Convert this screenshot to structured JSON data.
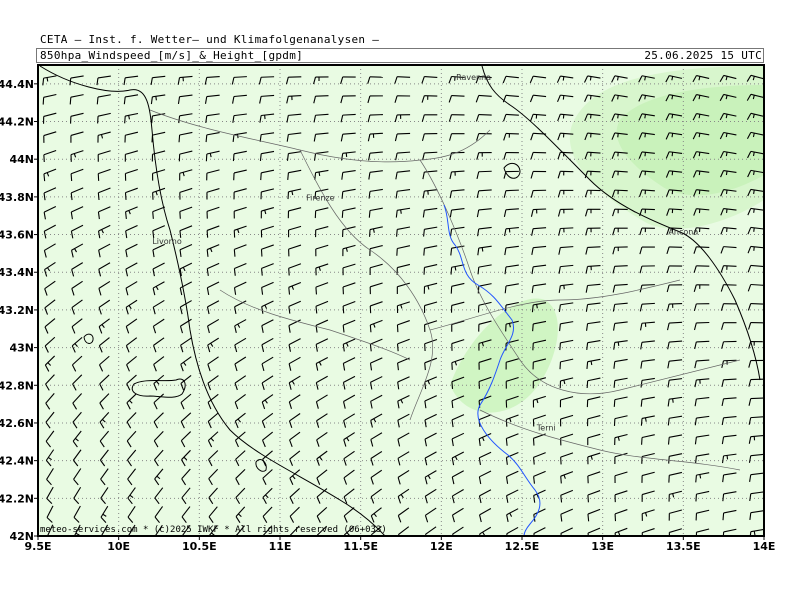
{
  "header": {
    "title": "CETA — Inst. f. Wetter— und Klimafolgenanalysen —",
    "subtitle": "850hpa_Windspeed_[m/s]_&_Height_[gpdm]",
    "datetime": "25.06.2025 15 UTC"
  },
  "map": {
    "lon_range": [
      9.5,
      14.0
    ],
    "lat_range": [
      42.0,
      44.5
    ],
    "lon_ticks": [
      "9.5E",
      "10E",
      "10.5E",
      "11E",
      "11.5E",
      "12E",
      "12.5E",
      "13E",
      "13.5E",
      "14E"
    ],
    "lat_ticks": [
      "42N",
      "42.2N",
      "42.4N",
      "42.6N",
      "42.8N",
      "43N",
      "43.2N",
      "43.4N",
      "43.6N",
      "43.8N",
      "44N",
      "44.2N",
      "44.4N"
    ],
    "grid": true,
    "cities": [
      {
        "name": "Ravenna",
        "lon": 12.2,
        "lat": 44.42
      },
      {
        "name": "Firenze",
        "lon": 11.25,
        "lat": 43.78
      },
      {
        "name": "Livorno",
        "lon": 10.3,
        "lat": 43.55
      },
      {
        "name": "Ancona",
        "lon": 13.5,
        "lat": 43.6
      },
      {
        "name": "Terni",
        "lon": 12.65,
        "lat": 42.56
      }
    ],
    "copyright": "meteo-services.com * (c)2025 IWKF * All rights reserved (06+033)",
    "colors": {
      "background": "#e9fbe3",
      "wind_light": "#dcf8d2",
      "wind_medium": "#c6f1b8",
      "coast": "#000000",
      "border": "#666666",
      "river": "#2255ff",
      "grid": "#888888"
    }
  }
}
